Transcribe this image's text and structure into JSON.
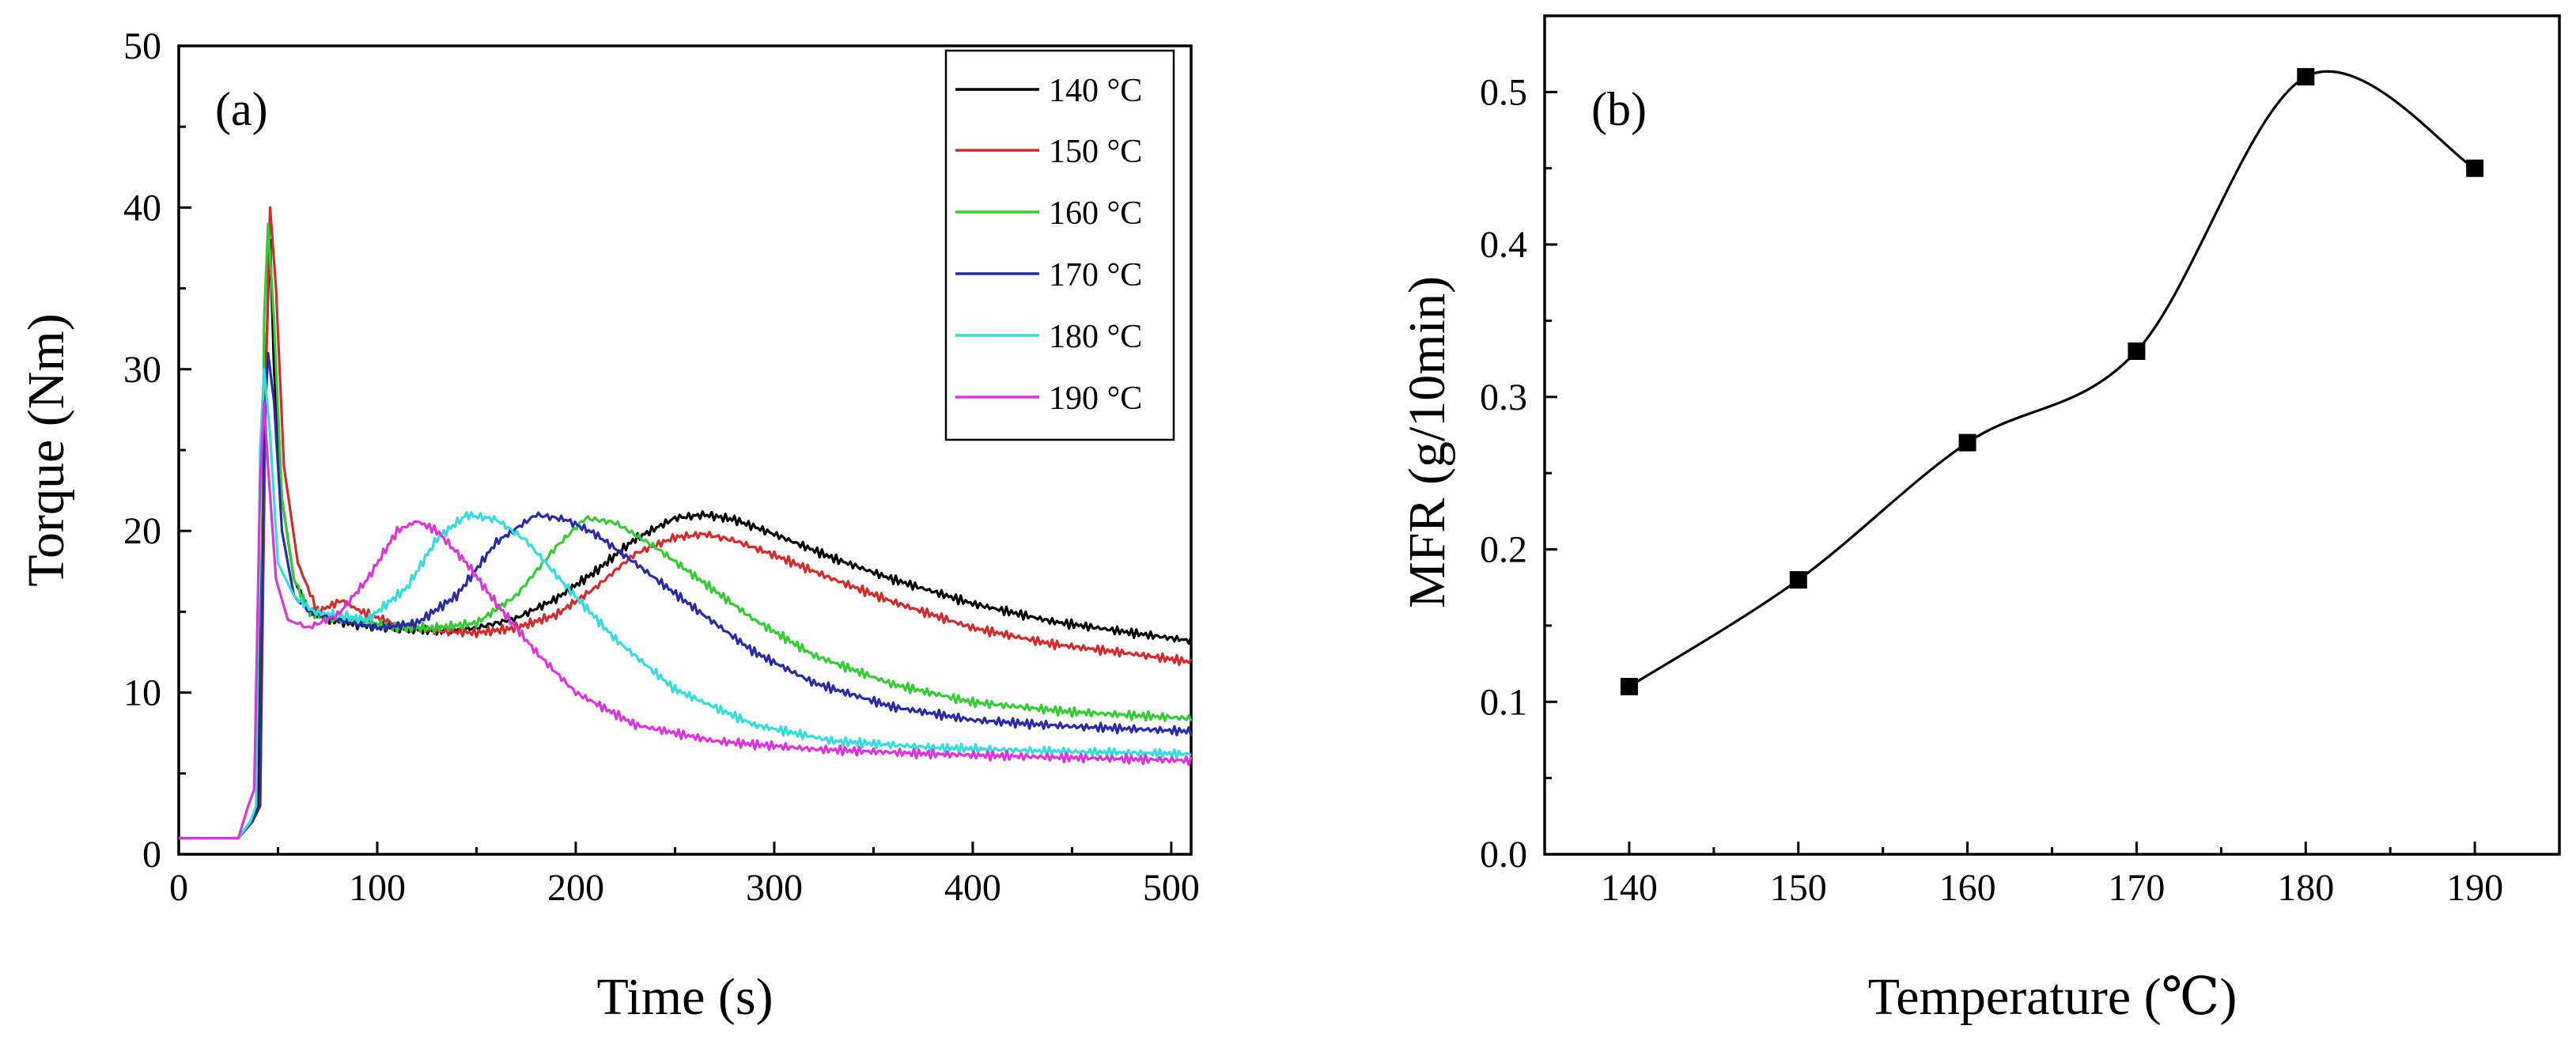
{
  "chart_data": [
    {
      "type": "line",
      "panel_label": "(a)",
      "xlabel": "Time (s)",
      "ylabel": "Torque (Nm)",
      "xlim": [
        0,
        510
      ],
      "ylim": [
        0,
        50
      ],
      "xticks": [
        0,
        100,
        200,
        300,
        400,
        500
      ],
      "yticks": [
        0,
        10,
        20,
        30,
        40,
        50
      ],
      "legend_position": "top-right",
      "series": [
        {
          "name": "140 °C",
          "color": "#000000",
          "x": [
            0,
            30,
            36,
            40,
            43,
            46,
            48,
            52,
            58,
            66,
            76,
            90,
            110,
            130,
            150,
            170,
            190,
            210,
            230,
            250,
            265,
            280,
            300,
            330,
            360,
            400,
            440,
            480,
            510
          ],
          "y": [
            1,
            1,
            2,
            3,
            27,
            38,
            30,
            22,
            17,
            15,
            14.5,
            14.2,
            14,
            13.8,
            14,
            14.6,
            15.8,
            17.5,
            19.5,
            20.8,
            21,
            20.7,
            19.8,
            18.3,
            17,
            15.5,
            14.4,
            13.7,
            13.2
          ]
        },
        {
          "name": "150 °C",
          "color": "#d62a2a",
          "x": [
            0,
            30,
            37,
            41,
            44,
            46,
            49,
            53,
            60,
            70,
            82,
            92,
            110,
            130,
            150,
            170,
            190,
            210,
            230,
            250,
            265,
            280,
            300,
            330,
            360,
            400,
            440,
            480,
            510
          ],
          "y": [
            1,
            1,
            2,
            3,
            30,
            40,
            35,
            24,
            18,
            15,
            15.7,
            15,
            14.2,
            13.8,
            13.7,
            14,
            14.8,
            16.5,
            18.6,
            19.6,
            19.8,
            19.4,
            18.5,
            17,
            15.6,
            14,
            13,
            12.4,
            11.9
          ]
        },
        {
          "name": "160 °C",
          "color": "#33cc33",
          "x": [
            0,
            30,
            37,
            41,
            43,
            45,
            48,
            52,
            58,
            66,
            76,
            90,
            110,
            130,
            150,
            170,
            190,
            205,
            220,
            240,
            260,
            290,
            320,
            360,
            400,
            450,
            510
          ],
          "y": [
            1,
            1,
            2,
            3,
            33,
            39,
            33,
            22,
            17,
            15,
            14.5,
            14.5,
            14,
            14,
            14.3,
            16,
            19,
            20.8,
            20.5,
            19,
            17.2,
            14.5,
            12.3,
            10.5,
            9.4,
            8.8,
            8.4
          ]
        },
        {
          "name": "170 °C",
          "color": "#2a2aa8",
          "x": [
            0,
            30,
            37,
            41,
            43,
            45,
            48,
            52,
            58,
            66,
            80,
            100,
            120,
            140,
            160,
            180,
            195,
            210,
            230,
            260,
            290,
            320,
            360,
            400,
            450,
            510
          ],
          "y": [
            1,
            1,
            2,
            3,
            26,
            31,
            28,
            20,
            16,
            15,
            14.5,
            14,
            14.3,
            16,
            19.3,
            21,
            20.7,
            19.8,
            18,
            15.2,
            12.5,
            10.6,
            9.1,
            8.3,
            7.9,
            7.6
          ]
        },
        {
          "name": "180 °C",
          "color": "#33dddd",
          "x": [
            0,
            30,
            36,
            39,
            41,
            43,
            46,
            50,
            58,
            68,
            80,
            95,
            115,
            130,
            145,
            160,
            175,
            195,
            220,
            250,
            290,
            330,
            380,
            430,
            470,
            510
          ],
          "y": [
            1,
            1,
            2,
            3,
            25,
            30,
            26,
            18,
            16,
            15,
            14.8,
            14.5,
            16.5,
            19.5,
            21,
            20.7,
            19.4,
            16.6,
            13.3,
            10.2,
            8,
            7,
            6.6,
            6.4,
            6.3,
            6.2
          ]
        },
        {
          "name": "190 °C",
          "color": "#dd33dd",
          "x": [
            0,
            30,
            35,
            38,
            41,
            43,
            45,
            49,
            55,
            65,
            80,
            95,
            110,
            120,
            130,
            145,
            160,
            180,
            200,
            230,
            270,
            320,
            380,
            440,
            510
          ],
          "y": [
            1,
            1,
            3,
            4,
            23,
            28,
            24,
            17,
            14.5,
            14,
            14.8,
            17,
            20,
            20.6,
            20,
            18,
            15.5,
            12.5,
            10,
            8,
            7,
            6.5,
            6.2,
            6,
            5.8
          ]
        }
      ]
    },
    {
      "type": "line",
      "panel_label": "(b)",
      "xlabel": "Temperature (℃)",
      "ylabel": "MFR (g/10min)",
      "xlim": [
        135,
        195
      ],
      "ylim": [
        0,
        0.55
      ],
      "xticks": [
        140,
        150,
        160,
        170,
        180,
        190
      ],
      "yticks": [
        0.0,
        0.1,
        0.2,
        0.3,
        0.4,
        0.5
      ],
      "ytick_labels": [
        "0.0",
        "0.1",
        "0.2",
        "0.3",
        "0.4",
        "0.5"
      ],
      "series": [
        {
          "name": "MFR",
          "color": "#000000",
          "marker": "square",
          "x": [
            140,
            150,
            160,
            170,
            180,
            190
          ],
          "y": [
            0.11,
            0.18,
            0.27,
            0.33,
            0.51,
            0.45
          ]
        }
      ]
    }
  ]
}
